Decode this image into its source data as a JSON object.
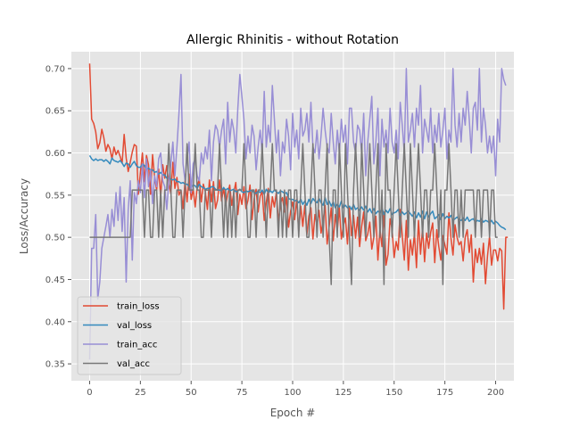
{
  "chart_data": {
    "type": "line",
    "title": "Allergic Rhinitis - without Rotation",
    "xlabel": "Epoch #",
    "ylabel": "Loss/Accuracy",
    "xlim": [
      -9,
      209
    ],
    "ylim": [
      0.33,
      0.72
    ],
    "xticks": [
      0,
      25,
      50,
      75,
      100,
      125,
      150,
      175,
      200
    ],
    "yticks": [
      0.35,
      0.4,
      0.45,
      0.5,
      0.55,
      0.6,
      0.65,
      0.7
    ],
    "grid": true,
    "legend_position": "lower-left",
    "x_start": 0,
    "x_step": 1,
    "series": [
      {
        "name": "train_loss",
        "color": "#E24A33",
        "values": [
          0.706,
          0.64,
          0.635,
          0.625,
          0.605,
          0.612,
          0.628,
          0.618,
          0.602,
          0.61,
          0.605,
          0.593,
          0.607,
          0.598,
          0.603,
          0.596,
          0.588,
          0.622,
          0.594,
          0.578,
          0.589,
          0.601,
          0.61,
          0.608,
          0.551,
          0.577,
          0.6,
          0.566,
          0.597,
          0.586,
          0.551,
          0.598,
          0.571,
          0.556,
          0.581,
          0.548,
          0.586,
          0.57,
          0.585,
          0.563,
          0.552,
          0.589,
          0.558,
          0.571,
          0.55,
          0.556,
          0.534,
          0.567,
          0.542,
          0.575,
          0.545,
          0.557,
          0.536,
          0.56,
          0.569,
          0.542,
          0.563,
          0.554,
          0.533,
          0.568,
          0.542,
          0.566,
          0.534,
          0.544,
          0.568,
          0.543,
          0.559,
          0.538,
          0.551,
          0.562,
          0.538,
          0.553,
          0.565,
          0.527,
          0.551,
          0.539,
          0.56,
          0.534,
          0.544,
          0.562,
          0.521,
          0.546,
          0.557,
          0.53,
          0.549,
          0.554,
          0.52,
          0.541,
          0.558,
          0.523,
          0.548,
          0.536,
          0.554,
          0.518,
          0.54,
          0.547,
          0.53,
          0.548,
          0.512,
          0.531,
          0.542,
          0.521,
          0.545,
          0.507,
          0.537,
          0.513,
          0.538,
          0.503,
          0.525,
          0.535,
          0.498,
          0.527,
          0.515,
          0.532,
          0.505,
          0.52,
          0.538,
          0.492,
          0.513,
          0.535,
          0.496,
          0.527,
          0.508,
          0.535,
          0.498,
          0.514,
          0.523,
          0.492,
          0.535,
          0.502,
          0.526,
          0.499,
          0.524,
          0.489,
          0.513,
          0.53,
          0.496,
          0.504,
          0.518,
          0.486,
          0.5,
          0.525,
          0.473,
          0.51,
          0.489,
          0.53,
          0.467,
          0.48,
          0.522,
          0.51,
          0.476,
          0.495,
          0.485,
          0.533,
          0.502,
          0.473,
          0.52,
          0.461,
          0.497,
          0.479,
          0.505,
          0.464,
          0.52,
          0.48,
          0.511,
          0.471,
          0.505,
          0.487,
          0.506,
          0.517,
          0.47,
          0.509,
          0.489,
          0.473,
          0.502,
          0.491,
          0.48,
          0.529,
          0.499,
          0.479,
          0.515,
          0.5,
          0.491,
          0.495,
          0.472,
          0.5,
          0.509,
          0.482,
          0.503,
          0.447,
          0.486,
          0.47,
          0.487,
          0.468,
          0.493,
          0.445,
          0.478,
          0.501,
          0.467,
          0.485,
          0.485,
          0.472,
          0.487,
          0.484,
          0.415,
          0.5,
          0.5
        ]
      },
      {
        "name": "val_loss",
        "color": "#348ABD",
        "values": [
          0.597,
          0.593,
          0.591,
          0.593,
          0.591,
          0.592,
          0.592,
          0.59,
          0.592,
          0.59,
          0.587,
          0.594,
          0.591,
          0.59,
          0.589,
          0.591,
          0.588,
          0.584,
          0.588,
          0.587,
          0.583,
          0.587,
          0.59,
          0.585,
          0.583,
          0.583,
          0.587,
          0.585,
          0.58,
          0.582,
          0.58,
          0.58,
          0.577,
          0.578,
          0.575,
          0.577,
          0.574,
          0.574,
          0.57,
          0.57,
          0.569,
          0.568,
          0.569,
          0.566,
          0.566,
          0.564,
          0.565,
          0.563,
          0.563,
          0.56,
          0.559,
          0.562,
          0.561,
          0.558,
          0.563,
          0.56,
          0.559,
          0.557,
          0.558,
          0.558,
          0.56,
          0.56,
          0.557,
          0.556,
          0.556,
          0.555,
          0.559,
          0.556,
          0.558,
          0.555,
          0.556,
          0.557,
          0.554,
          0.555,
          0.557,
          0.554,
          0.553,
          0.555,
          0.554,
          0.555,
          0.556,
          0.553,
          0.552,
          0.555,
          0.553,
          0.556,
          0.551,
          0.557,
          0.553,
          0.555,
          0.553,
          0.556,
          0.554,
          0.552,
          0.555,
          0.554,
          0.552,
          0.553,
          0.546,
          0.545,
          0.545,
          0.543,
          0.544,
          0.541,
          0.545,
          0.539,
          0.543,
          0.538,
          0.545,
          0.54,
          0.546,
          0.543,
          0.541,
          0.546,
          0.541,
          0.538,
          0.547,
          0.539,
          0.543,
          0.537,
          0.542,
          0.535,
          0.539,
          0.536,
          0.543,
          0.535,
          0.538,
          0.535,
          0.537,
          0.533,
          0.539,
          0.533,
          0.535,
          0.532,
          0.536,
          0.532,
          0.537,
          0.53,
          0.534,
          0.529,
          0.534,
          0.528,
          0.531,
          0.529,
          0.535,
          0.527,
          0.532,
          0.529,
          0.534,
          0.527,
          0.529,
          0.53,
          0.533,
          0.526,
          0.53,
          0.527,
          0.529,
          0.531,
          0.528,
          0.525,
          0.53,
          0.523,
          0.529,
          0.524,
          0.531,
          0.522,
          0.53,
          0.524,
          0.528,
          0.531,
          0.522,
          0.524,
          0.527,
          0.521,
          0.528,
          0.522,
          0.525,
          0.523,
          0.526,
          0.52,
          0.522,
          0.524,
          0.521,
          0.52,
          0.523,
          0.52,
          0.524,
          0.519,
          0.521,
          0.522,
          0.518,
          0.52,
          0.519,
          0.522,
          0.518,
          0.52,
          0.519,
          0.517,
          0.52,
          0.516,
          0.519,
          0.517,
          0.514,
          0.512,
          0.511,
          0.509
        ]
      },
      {
        "name": "train_acc",
        "color": "#988ED5",
        "values": [
          0.355,
          0.487,
          0.487,
          0.527,
          0.427,
          0.447,
          0.487,
          0.5,
          0.513,
          0.527,
          0.5,
          0.533,
          0.513,
          0.553,
          0.52,
          0.56,
          0.507,
          0.547,
          0.447,
          0.533,
          0.567,
          0.473,
          0.553,
          0.54,
          0.567,
          0.553,
          0.587,
          0.547,
          0.593,
          0.56,
          0.58,
          0.54,
          0.573,
          0.56,
          0.593,
          0.6,
          0.567,
          0.56,
          0.533,
          0.567,
          0.587,
          0.613,
          0.573,
          0.607,
          0.647,
          0.693,
          0.587,
          0.567,
          0.593,
          0.613,
          0.553,
          0.587,
          0.593,
          0.573,
          0.567,
          0.6,
          0.587,
          0.607,
          0.593,
          0.627,
          0.567,
          0.613,
          0.633,
          0.627,
          0.607,
          0.627,
          0.64,
          0.587,
          0.66,
          0.613,
          0.64,
          0.627,
          0.6,
          0.653,
          0.693,
          0.667,
          0.64,
          0.593,
          0.62,
          0.6,
          0.633,
          0.62,
          0.58,
          0.607,
          0.627,
          0.6,
          0.673,
          0.607,
          0.633,
          0.613,
          0.68,
          0.64,
          0.6,
          0.627,
          0.573,
          0.613,
          0.6,
          0.64,
          0.62,
          0.58,
          0.647,
          0.607,
          0.627,
          0.593,
          0.653,
          0.62,
          0.627,
          0.647,
          0.613,
          0.66,
          0.607,
          0.6,
          0.627,
          0.593,
          0.62,
          0.653,
          0.627,
          0.607,
          0.6,
          0.647,
          0.613,
          0.587,
          0.627,
          0.6,
          0.64,
          0.613,
          0.633,
          0.587,
          0.653,
          0.653,
          0.613,
          0.6,
          0.633,
          0.627,
          0.6,
          0.647,
          0.573,
          0.613,
          0.64,
          0.667,
          0.587,
          0.613,
          0.653,
          0.573,
          0.64,
          0.607,
          0.627,
          0.6,
          0.653,
          0.613,
          0.6,
          0.627,
          0.593,
          0.66,
          0.633,
          0.6,
          0.7,
          0.613,
          0.627,
          0.647,
          0.607,
          0.653,
          0.633,
          0.68,
          0.6,
          0.64,
          0.627,
          0.613,
          0.653,
          0.6,
          0.633,
          0.613,
          0.647,
          0.607,
          0.627,
          0.653,
          0.593,
          0.627,
          0.613,
          0.7,
          0.633,
          0.607,
          0.647,
          0.613,
          0.653,
          0.633,
          0.673,
          0.64,
          0.6,
          0.653,
          0.66,
          0.627,
          0.7,
          0.613,
          0.653,
          0.633,
          0.6,
          0.62,
          0.6,
          0.62,
          0.573,
          0.64,
          0.613,
          0.7,
          0.687,
          0.68
        ]
      },
      {
        "name": "val_acc",
        "color": "#777777",
        "values": [
          0.5,
          0.5,
          0.5,
          0.5,
          0.5,
          0.5,
          0.5,
          0.5,
          0.5,
          0.5,
          0.5,
          0.5,
          0.5,
          0.5,
          0.5,
          0.5,
          0.5,
          0.5,
          0.5,
          0.5,
          0.5,
          0.556,
          0.556,
          0.556,
          0.556,
          0.556,
          0.556,
          0.5,
          0.556,
          0.556,
          0.5,
          0.5,
          0.556,
          0.556,
          0.5,
          0.556,
          0.5,
          0.556,
          0.556,
          0.611,
          0.556,
          0.5,
          0.5,
          0.556,
          0.556,
          0.556,
          0.5,
          0.556,
          0.611,
          0.556,
          0.556,
          0.556,
          0.611,
          0.556,
          0.556,
          0.5,
          0.5,
          0.556,
          0.556,
          0.556,
          0.5,
          0.556,
          0.556,
          0.556,
          0.611,
          0.556,
          0.5,
          0.556,
          0.5,
          0.556,
          0.5,
          0.556,
          0.5,
          0.556,
          0.556,
          0.556,
          0.611,
          0.556,
          0.5,
          0.5,
          0.556,
          0.556,
          0.5,
          0.556,
          0.556,
          0.611,
          0.556,
          0.5,
          0.556,
          0.556,
          0.611,
          0.556,
          0.556,
          0.5,
          0.556,
          0.5,
          0.556,
          0.5,
          0.556,
          0.556,
          0.5,
          0.556,
          0.556,
          0.5,
          0.556,
          0.611,
          0.556,
          0.5,
          0.5,
          0.556,
          0.611,
          0.556,
          0.5,
          0.556,
          0.556,
          0.5,
          0.556,
          0.611,
          0.5,
          0.444,
          0.556,
          0.556,
          0.5,
          0.611,
          0.556,
          0.5,
          0.611,
          0.556,
          0.5,
          0.444,
          0.556,
          0.611,
          0.556,
          0.5,
          0.611,
          0.556,
          0.5,
          0.556,
          0.611,
          0.556,
          0.5,
          0.556,
          0.611,
          0.5,
          0.556,
          0.444,
          0.611,
          0.556,
          0.556,
          0.5,
          0.556,
          0.611,
          0.556,
          0.5,
          0.556,
          0.611,
          0.556,
          0.5,
          0.611,
          0.556,
          0.5,
          0.556,
          0.611,
          0.556,
          0.5,
          0.556,
          0.556,
          0.5,
          0.556,
          0.556,
          0.611,
          0.556,
          0.5,
          0.556,
          0.444,
          0.556,
          0.556,
          0.611,
          0.556,
          0.5,
          0.556,
          0.556,
          0.5,
          0.556,
          0.5,
          0.556,
          0.556,
          0.556,
          0.556,
          0.556,
          0.5,
          0.556,
          0.556,
          0.5,
          0.556,
          0.556,
          0.556,
          0.5,
          0.556,
          0.556,
          0.5,
          0.5
        ]
      }
    ]
  }
}
